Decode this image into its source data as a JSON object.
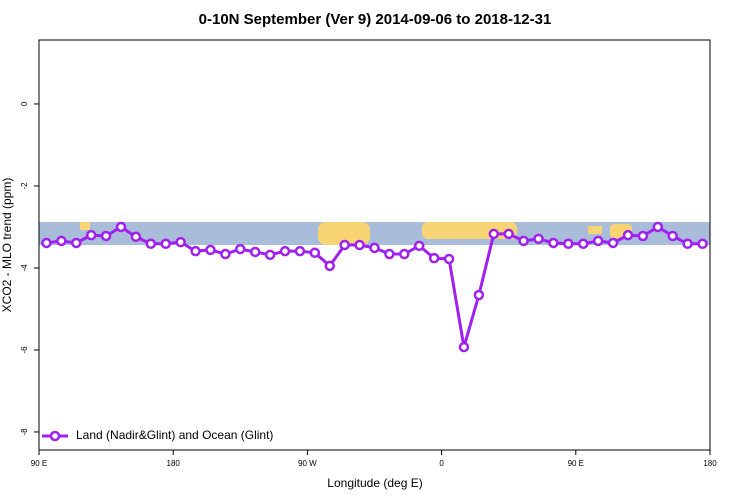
{
  "chart_data": {
    "type": "line",
    "title": "0-10N September (Ver 9)   2014-09-06 to 2018-12-31",
    "x_label": "Longitude (deg E)",
    "y_label": "XCO2 - MLO trend (ppm)",
    "x": [
      95,
      105,
      115,
      125,
      135,
      145,
      155,
      165,
      175,
      185,
      195,
      205,
      215,
      225,
      235,
      245,
      255,
      265,
      275,
      285,
      295,
      305,
      315,
      325,
      335,
      345,
      355,
      365,
      375,
      385,
      395,
      405,
      415,
      425,
      435,
      445,
      455,
      465,
      475,
      485,
      495,
      505,
      515,
      525,
      535
    ],
    "series": [
      {
        "name": "Land (Nadir&Glint) and Ocean (Glint)",
        "color": "#a020f0",
        "values": [
          -3.39,
          -3.34,
          -3.39,
          -3.2,
          -3.22,
          -3.0,
          -3.24,
          -3.41,
          -3.41,
          -3.37,
          -3.59,
          -3.56,
          -3.66,
          -3.54,
          -3.61,
          -3.68,
          -3.59,
          -3.59,
          -3.63,
          -3.95,
          -3.44,
          -3.44,
          -3.51,
          -3.66,
          -3.66,
          -3.46,
          -3.76,
          -3.78,
          -5.93,
          -4.66,
          -3.17,
          -3.17,
          -3.34,
          -3.29,
          -3.39,
          -3.41,
          -3.41,
          -3.34,
          -3.39,
          -3.2,
          -3.22,
          -3.0,
          -3.22,
          -3.41,
          -3.41
        ]
      }
    ],
    "xlim": [
      90,
      540
    ],
    "xticks": [
      {
        "value": 90,
        "label": "90 E"
      },
      {
        "value": 180,
        "label": "180"
      },
      {
        "value": 270,
        "label": "90 W"
      },
      {
        "value": 360,
        "label": "0"
      },
      {
        "value": 450,
        "label": "90 E"
      },
      {
        "value": 540,
        "label": "180"
      }
    ],
    "ylim": [
      -8.44,
      1.56
    ],
    "yticks": [
      0,
      -2,
      -4,
      -6,
      -8
    ],
    "legend": "lower left"
  }
}
